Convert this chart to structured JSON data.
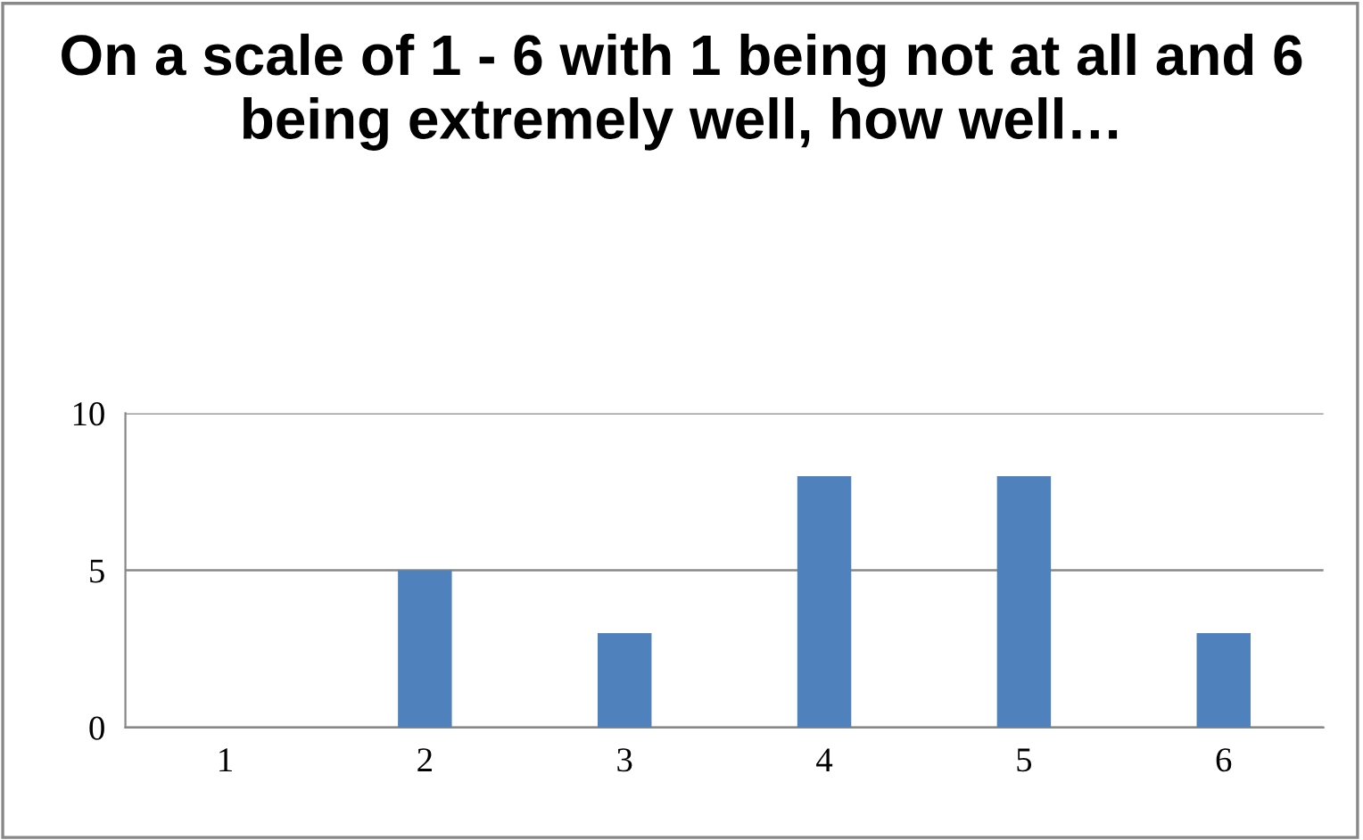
{
  "chart_data": {
    "type": "bar",
    "title": "On a scale of 1 - 6 with 1 being not at all and 6 being extremely well, how well…",
    "categories": [
      "1",
      "2",
      "3",
      "4",
      "5",
      "6"
    ],
    "values": [
      0,
      5,
      3,
      8,
      8,
      3
    ],
    "color": "#4f81bd",
    "ylim": [
      0,
      10
    ],
    "yticks": [
      0,
      5,
      10
    ],
    "grid": "y",
    "legend": false
  }
}
